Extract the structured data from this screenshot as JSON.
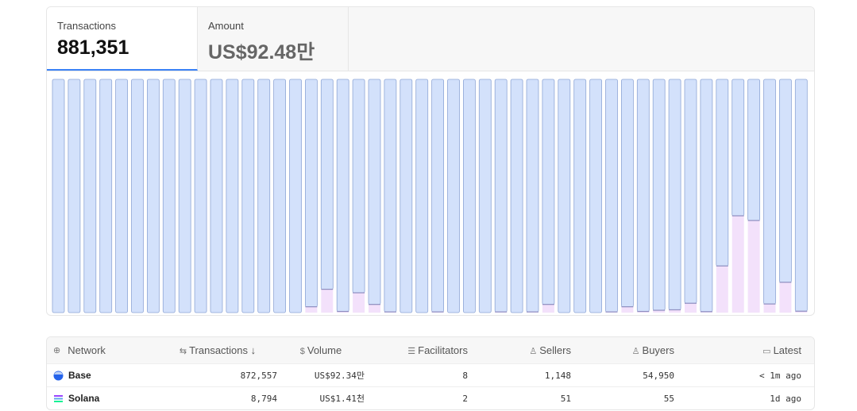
{
  "tabs": [
    {
      "label": "Transactions",
      "value": "881,351"
    },
    {
      "label": "Amount",
      "value": "US$92.48만"
    }
  ],
  "chart_data": {
    "type": "bar",
    "stacked": true,
    "normalized": true,
    "series": [
      {
        "key": "solana",
        "color": "#f3e1fb"
      },
      {
        "key": "base",
        "color": "#d3e1fb"
      }
    ],
    "solana_share": [
      0,
      0,
      0,
      0,
      0,
      0,
      0,
      0,
      0,
      0,
      0,
      0,
      0,
      0,
      0,
      0,
      0.025,
      0.1,
      0.005,
      0.085,
      0.035,
      0.003,
      0,
      0,
      0.003,
      0,
      0,
      0,
      0.003,
      0,
      0.003,
      0.035,
      0,
      0,
      0,
      0.003,
      0.025,
      0.005,
      0.01,
      0.012,
      0.04,
      0.004,
      0.2,
      0.415,
      0.395,
      0.037,
      0.13,
      0.006
    ],
    "ylim": [
      0,
      1
    ],
    "grid": false
  },
  "table": {
    "headers": [
      {
        "icon": "globe-icon",
        "glyph": "⊕",
        "label": "Network"
      },
      {
        "icon": "arrows-icon",
        "glyph": "⇆",
        "label": "Transactions ↓"
      },
      {
        "icon": "dollar-icon",
        "glyph": "$",
        "label": "Volume"
      },
      {
        "icon": "server-icon",
        "glyph": "☰",
        "label": "Facilitators"
      },
      {
        "icon": "user-icon",
        "glyph": "♙",
        "label": "Sellers"
      },
      {
        "icon": "user-icon",
        "glyph": "♙",
        "label": "Buyers"
      },
      {
        "icon": "calendar-icon",
        "glyph": "▭",
        "label": "Latest"
      }
    ],
    "rows": [
      {
        "network": "Base",
        "transactions": "872,557",
        "volume": "US$92.34만",
        "facilitators": "8",
        "sellers": "1,148",
        "buyers": "54,950",
        "latest": "< 1m ago"
      },
      {
        "network": "Solana",
        "transactions": "8,794",
        "volume": "US$1.41천",
        "facilitators": "2",
        "sellers": "51",
        "buyers": "55",
        "latest": "1d ago"
      }
    ]
  }
}
